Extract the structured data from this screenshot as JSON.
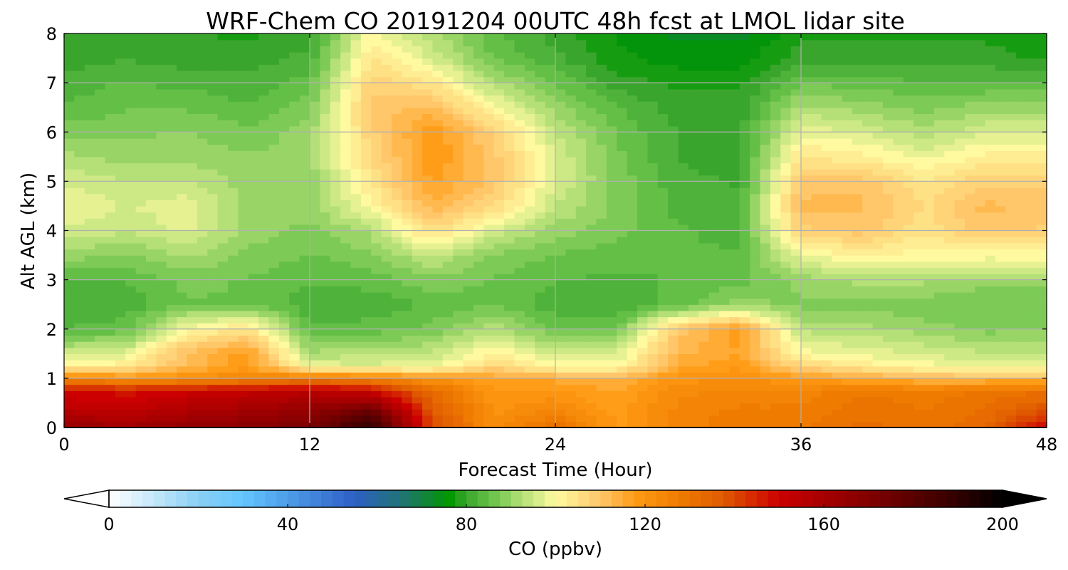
{
  "chart_data": {
    "type": "heatmap",
    "title": "WRF-Chem CO 20191204 00UTC 48h fcst at LMOL lidar site",
    "xlabel": "Forecast Time (Hour)",
    "ylabel": "Alt AGL (km)",
    "xlim": [
      0,
      48
    ],
    "ylim": [
      0,
      8
    ],
    "x_ticks": [
      0,
      12,
      24,
      36,
      48
    ],
    "y_ticks": [
      0,
      1,
      2,
      3,
      4,
      5,
      6,
      7,
      8
    ],
    "grid": true,
    "x": [
      0,
      3,
      6,
      9,
      12,
      15,
      18,
      21,
      24,
      27,
      30,
      33,
      36,
      39,
      42,
      45,
      48
    ],
    "y": [
      0,
      0.25,
      0.5,
      0.75,
      1,
      1.25,
      1.5,
      2,
      2.5,
      3,
      3.5,
      4,
      4.5,
      5,
      5.5,
      6,
      6.5,
      7,
      7.5,
      8
    ],
    "z": [
      [
        165,
        162,
        166,
        168,
        172,
        192,
        140,
        122,
        132,
        118,
        125,
        128,
        128,
        132,
        130,
        133,
        150
      ],
      [
        158,
        156,
        160,
        163,
        168,
        182,
        138,
        121,
        126,
        118,
        125,
        127,
        127,
        131,
        129,
        132,
        142
      ],
      [
        152,
        150,
        155,
        158,
        162,
        165,
        135,
        120,
        122,
        117,
        124,
        126,
        126,
        130,
        128,
        131,
        135
      ],
      [
        150,
        148,
        150,
        152,
        155,
        150,
        132,
        119,
        120,
        116,
        123,
        124,
        125,
        128,
        127,
        129,
        131
      ],
      [
        125,
        120,
        122,
        125,
        128,
        125,
        120,
        116,
        115,
        113,
        120,
        122,
        118,
        115,
        112,
        112,
        112
      ],
      [
        100,
        103,
        112,
        118,
        98,
        97,
        98,
        107,
        100,
        100,
        115,
        118,
        107,
        103,
        100,
        98,
        98
      ],
      [
        95,
        97,
        112,
        118,
        92,
        93,
        94,
        102,
        95,
        96,
        113,
        116,
        100,
        98,
        96,
        94,
        94
      ],
      [
        84,
        85,
        100,
        105,
        84,
        85,
        87,
        93,
        86,
        87,
        110,
        118,
        93,
        92,
        90,
        88,
        88
      ],
      [
        81,
        82,
        86,
        86,
        82,
        82,
        84,
        86,
        82,
        81,
        85,
        90,
        88,
        88,
        87,
        86,
        86
      ],
      [
        84,
        84,
        87,
        86,
        84,
        85,
        88,
        86,
        84,
        83,
        84,
        85,
        90,
        92,
        92,
        90,
        90
      ],
      [
        90,
        88,
        92,
        88,
        86,
        88,
        94,
        88,
        86,
        85,
        84,
        84,
        98,
        102,
        100,
        100,
        100
      ],
      [
        96,
        94,
        97,
        90,
        88,
        92,
        106,
        96,
        90,
        87,
        84,
        83,
        108,
        110,
        104,
        110,
        108
      ],
      [
        99,
        96,
        98,
        90,
        90,
        100,
        113,
        106,
        94,
        88,
        83,
        82,
        112,
        112,
        106,
        112,
        110
      ],
      [
        96,
        94,
        94,
        90,
        90,
        104,
        117,
        110,
        96,
        88,
        82,
        81,
        110,
        110,
        104,
        108,
        108
      ],
      [
        92,
        90,
        90,
        89,
        90,
        106,
        119,
        110,
        96,
        87,
        81,
        80,
        104,
        102,
        98,
        102,
        102
      ],
      [
        88,
        88,
        89,
        87,
        90,
        108,
        118,
        108,
        94,
        86,
        81,
        80,
        98,
        96,
        92,
        96,
        96
      ],
      [
        84,
        86,
        86,
        84,
        88,
        110,
        112,
        100,
        90,
        84,
        80,
        80,
        92,
        90,
        88,
        90,
        90
      ],
      [
        82,
        84,
        83,
        82,
        85,
        108,
        104,
        92,
        86,
        80,
        78,
        78,
        86,
        85,
        84,
        84,
        84
      ],
      [
        80,
        81,
        80,
        80,
        82,
        104,
        96,
        86,
        82,
        77,
        75,
        75,
        80,
        80,
        80,
        80,
        78
      ],
      [
        79,
        80,
        79,
        78,
        80,
        100,
        92,
        84,
        80,
        76,
        73,
        73,
        78,
        78,
        78,
        78,
        77
      ]
    ],
    "colorbar": {
      "label": "CO  (ppbv)",
      "min": 0,
      "max": 200,
      "ticks": [
        0,
        40,
        80,
        120,
        160,
        200
      ],
      "extend": "both",
      "colorscale": [
        [
          0,
          "#ffffff"
        ],
        [
          20,
          "#8ad0f5"
        ],
        [
          30,
          "#63c6ff"
        ],
        [
          55,
          "#2e5fc6"
        ],
        [
          66,
          "#1f7570"
        ],
        [
          76,
          "#009700"
        ],
        [
          80,
          "#3aa52d"
        ],
        [
          86,
          "#6cc44c"
        ],
        [
          93,
          "#b9e27a"
        ],
        [
          100,
          "#fffaa0"
        ],
        [
          110,
          "#ffc76a"
        ],
        [
          118,
          "#ff9a14"
        ],
        [
          128,
          "#ee7a00"
        ],
        [
          137,
          "#e05c00"
        ],
        [
          150,
          "#cc0000"
        ],
        [
          172,
          "#7a0000"
        ],
        [
          188,
          "#3a0000"
        ],
        [
          200,
          "#000000"
        ]
      ]
    }
  }
}
